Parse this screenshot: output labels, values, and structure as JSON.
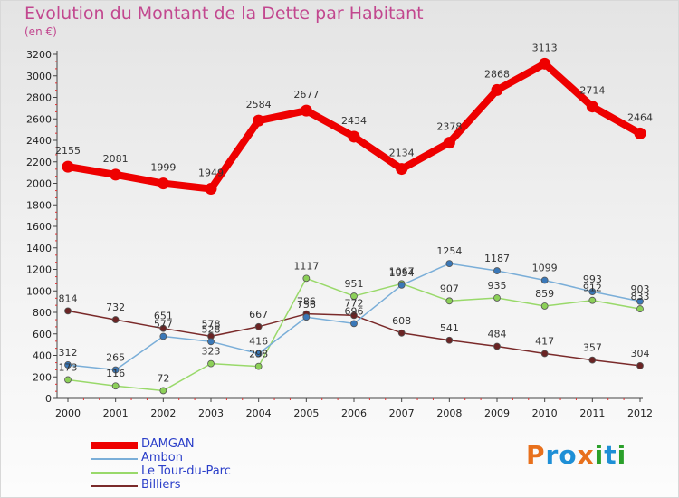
{
  "header": {
    "title": "Evolution du Montant de la Dette par Habitant",
    "subtitle": "(en €)"
  },
  "brand": {
    "logo_letters": [
      "P",
      "r",
      "o",
      "x",
      "i",
      "t",
      "i"
    ],
    "logo_colors": [
      "#e8701c",
      "#1e8fd6",
      "#1e8fd6",
      "#e8701c",
      "#2aa02a",
      "#1e8fd6",
      "#2aa02a"
    ]
  },
  "chart_data": {
    "type": "line",
    "title": "Evolution du Montant de la Dette par Habitant",
    "subtitle": "(en €)",
    "xlabel": "",
    "ylabel": "",
    "x": [
      2000,
      2001,
      2002,
      2003,
      2004,
      2005,
      2006,
      2007,
      2008,
      2009,
      2010,
      2011,
      2012
    ],
    "ylim": [
      0,
      3200
    ],
    "yticks": [
      0,
      200,
      400,
      600,
      800,
      1000,
      1200,
      1400,
      1600,
      1800,
      2000,
      2200,
      2400,
      2600,
      2800,
      3000,
      3200
    ],
    "grid": false,
    "legend_position": "bottom-left",
    "series": [
      {
        "name": "DAMGAN",
        "color": "#ee0000",
        "marker": "#ee0000",
        "width": 8,
        "markerSize": 6.5,
        "values": [
          2155,
          2081,
          1999,
          1949,
          2584,
          2677,
          2434,
          2134,
          2378,
          2868,
          3113,
          2714,
          2464
        ]
      },
      {
        "name": "Ambon",
        "color": "#7aaed8",
        "marker": "#3a78b8",
        "width": 1.5,
        "markerSize": 3.5,
        "values": [
          312,
          265,
          577,
          528,
          416,
          756,
          696,
          1054,
          1254,
          1187,
          1099,
          993,
          903
        ]
      },
      {
        "name": "Le Tour-du-Parc",
        "color": "#99d96a",
        "marker": "#8cd058",
        "width": 1.5,
        "markerSize": 3.5,
        "values": [
          173,
          116,
          72,
          323,
          298,
          1117,
          951,
          1067,
          907,
          935,
          859,
          912,
          833
        ]
      },
      {
        "name": "Billiers",
        "color": "#7a2a2a",
        "marker": "#6a2424",
        "width": 1.5,
        "markerSize": 3.5,
        "values": [
          814,
          732,
          651,
          578,
          667,
          786,
          772,
          608,
          541,
          484,
          417,
          357,
          304
        ]
      }
    ]
  }
}
